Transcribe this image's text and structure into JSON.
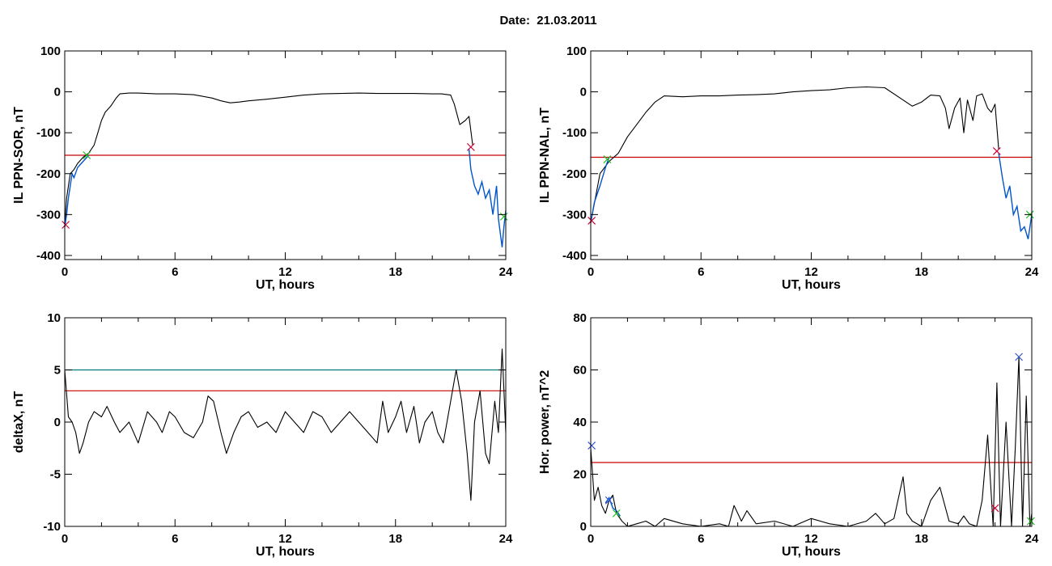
{
  "header": {
    "title": "Date:  21.03.2011"
  },
  "colors": {
    "axis": "#000000",
    "trace": "#000000",
    "segment": "#0055cc",
    "threshold_red": "#cc0000",
    "threshold_teal": "#007a7a",
    "marker_red": "#cc0033",
    "marker_green": "#22bb22",
    "marker_blue": "#3355cc"
  },
  "chart_data": [
    {
      "type": "line",
      "id": "p1",
      "xlabel": "UT, hours",
      "ylabel": "IL PPN-SOR, nT",
      "xlim": [
        0,
        24
      ],
      "ylim": [
        -410,
        100
      ],
      "xticks": [
        0,
        6,
        12,
        18,
        24
      ],
      "yticks": [
        100,
        0,
        -100,
        -200,
        -300,
        -400
      ],
      "series": [
        {
          "role": "trace",
          "x": [
            0,
            0.1,
            0.3,
            0.5,
            0.7,
            1.0,
            1.3,
            1.6,
            1.8,
            2.0,
            2.2,
            2.5,
            2.8,
            3.0,
            3.5,
            4,
            5,
            6,
            7,
            8,
            8.5,
            9,
            9.5,
            10,
            11,
            12,
            13,
            14,
            15,
            16,
            17,
            18,
            19,
            20,
            20.5,
            21,
            21.2,
            21.5,
            21.8,
            22.0,
            22.2
          ],
          "y": [
            -330,
            -260,
            -200,
            -190,
            -175,
            -160,
            -150,
            -130,
            -100,
            -70,
            -50,
            -35,
            -15,
            -5,
            -3,
            -3,
            -5,
            -5,
            -7,
            -15,
            -22,
            -27,
            -25,
            -22,
            -18,
            -13,
            -8,
            -5,
            -4,
            -3,
            -4,
            -4,
            -4,
            -5,
            -5,
            -8,
            -30,
            -80,
            -70,
            -60,
            -130
          ]
        },
        {
          "role": "segment",
          "x": [
            0,
            0.1,
            0.2,
            0.3,
            0.4,
            0.5,
            0.7,
            0.9,
            1.1,
            1.3,
            22.0,
            22.1,
            22.3,
            22.5,
            22.7,
            22.9,
            23.1,
            23.3,
            23.5,
            23.6,
            23.8,
            23.9,
            24
          ],
          "y": [
            -330,
            -300,
            -260,
            -230,
            -200,
            -210,
            -185,
            -175,
            -165,
            -155,
            -140,
            -190,
            -230,
            -250,
            -220,
            -260,
            -240,
            -300,
            -230,
            -310,
            -380,
            -330,
            -290
          ]
        }
      ],
      "thresholds": [
        {
          "value": -155,
          "color": "red"
        }
      ],
      "markers": [
        {
          "x": 0.05,
          "y": -325,
          "color": "red"
        },
        {
          "x": 1.2,
          "y": -155,
          "color": "green"
        },
        {
          "x": 22.1,
          "y": -135,
          "color": "red"
        },
        {
          "x": 23.9,
          "y": -305,
          "color": "green"
        }
      ]
    },
    {
      "type": "line",
      "id": "p2",
      "xlabel": "UT, hours",
      "ylabel": "IL PPN-NAL, nT",
      "xlim": [
        0,
        24
      ],
      "ylim": [
        -410,
        100
      ],
      "xticks": [
        0,
        6,
        12,
        18,
        24
      ],
      "yticks": [
        100,
        0,
        -100,
        -200,
        -300,
        -400
      ],
      "series": [
        {
          "role": "trace",
          "x": [
            0,
            0.5,
            1.0,
            1.5,
            2.0,
            2.5,
            3.0,
            3.5,
            4,
            5,
            6,
            7,
            8,
            9,
            10,
            11,
            12,
            13,
            14,
            15,
            16,
            17,
            17.5,
            18,
            18.5,
            19,
            19.3,
            19.5,
            19.8,
            20.1,
            20.3,
            20.5,
            20.8,
            21.0,
            21.3,
            21.6,
            21.8,
            22.0,
            22.2
          ],
          "y": [
            -320,
            -200,
            -170,
            -150,
            -110,
            -80,
            -50,
            -25,
            -10,
            -12,
            -10,
            -10,
            -8,
            -7,
            -5,
            0,
            3,
            5,
            10,
            12,
            10,
            -20,
            -35,
            -25,
            -8,
            -10,
            -40,
            -90,
            -40,
            -15,
            -100,
            -20,
            -70,
            -10,
            -5,
            -40,
            -50,
            -30,
            -140
          ]
        },
        {
          "role": "segment",
          "x": [
            0,
            0.2,
            0.5,
            0.8,
            1.0,
            22.2,
            22.4,
            22.6,
            22.8,
            23.0,
            23.2,
            23.4,
            23.6,
            23.8,
            24
          ],
          "y": [
            -320,
            -270,
            -230,
            -185,
            -160,
            -150,
            -210,
            -260,
            -230,
            -300,
            -280,
            -340,
            -330,
            -360,
            -300
          ]
        }
      ],
      "thresholds": [
        {
          "value": -160,
          "color": "red"
        }
      ],
      "markers": [
        {
          "x": 0.05,
          "y": -315,
          "color": "red"
        },
        {
          "x": 0.9,
          "y": -165,
          "color": "green"
        },
        {
          "x": 22.1,
          "y": -145,
          "color": "red"
        },
        {
          "x": 23.9,
          "y": -300,
          "color": "green"
        }
      ]
    },
    {
      "type": "line",
      "id": "p3",
      "xlabel": "UT, hours",
      "ylabel": "deltaX, nT",
      "xlim": [
        0,
        24
      ],
      "ylim": [
        -10,
        10
      ],
      "xticks": [
        0,
        6,
        12,
        18,
        24
      ],
      "yticks": [
        10,
        5,
        0,
        -5,
        -10
      ],
      "series": [
        {
          "role": "trace",
          "x": [
            0,
            0.2,
            0.4,
            0.6,
            0.8,
            1.0,
            1.3,
            1.6,
            2.0,
            2.3,
            2.7,
            3.0,
            3.5,
            4.0,
            4.5,
            5.0,
            5.3,
            5.7,
            6.0,
            6.5,
            7.0,
            7.5,
            7.8,
            8.1,
            8.5,
            8.8,
            9.2,
            9.6,
            10.0,
            10.5,
            11.0,
            11.5,
            12.0,
            12.5,
            13.0,
            13.5,
            14.0,
            14.5,
            15.0,
            15.5,
            16.0,
            16.5,
            17.0,
            17.3,
            17.6,
            18.0,
            18.3,
            18.6,
            19.0,
            19.3,
            19.6,
            20.0,
            20.3,
            20.6,
            21.0,
            21.3,
            21.6,
            21.9,
            22.1,
            22.3,
            22.6,
            22.9,
            23.1,
            23.4,
            23.6,
            23.8,
            24.0
          ],
          "y": [
            5,
            0.5,
            0,
            -1,
            -3,
            -2,
            0,
            1,
            0.5,
            1.5,
            0,
            -1,
            0,
            -2,
            1,
            0,
            -1,
            1,
            0.5,
            -1,
            -1.5,
            0,
            2.5,
            2,
            -1,
            -3,
            -1,
            0.5,
            1,
            -0.5,
            0,
            -1,
            1,
            0,
            -1,
            1,
            0.5,
            -1,
            0,
            1,
            0,
            -1,
            -2,
            2,
            -1,
            0.5,
            2,
            -1,
            1.5,
            -2,
            0,
            1,
            -1,
            -2,
            2,
            5,
            2,
            -3,
            -7.5,
            0,
            3,
            -3,
            -4,
            2,
            -1,
            7,
            -1
          ]
        }
      ],
      "thresholds": [
        {
          "value": 5,
          "color": "teal"
        },
        {
          "value": 3,
          "color": "red"
        }
      ],
      "markers": []
    },
    {
      "type": "line",
      "id": "p4",
      "xlabel": "UT, hours",
      "ylabel": "Hor. power, nT^2",
      "xlim": [
        0,
        24
      ],
      "ylim": [
        0,
        80
      ],
      "xticks": [
        0,
        6,
        12,
        18,
        24
      ],
      "yticks": [
        80,
        60,
        40,
        20,
        0
      ],
      "series": [
        {
          "role": "trace",
          "x": [
            0,
            0.2,
            0.4,
            0.6,
            0.8,
            1.0,
            1.2,
            1.4,
            1.7,
            2.0,
            2.5,
            3.0,
            3.5,
            4.0,
            5.0,
            6.0,
            7.0,
            7.5,
            7.8,
            8.2,
            8.5,
            9.0,
            10.0,
            11.0,
            12.0,
            13.0,
            14.0,
            15.0,
            15.5,
            16.0,
            16.5,
            17.0,
            17.2,
            17.5,
            18.0,
            18.5,
            19.0,
            19.5,
            20.0,
            20.3,
            20.6,
            21.0,
            21.3,
            21.6,
            21.9,
            22.1,
            22.3,
            22.6,
            22.9,
            23.1,
            23.3,
            23.5,
            23.7,
            23.9,
            24.0
          ],
          "y": [
            30,
            10,
            15,
            8,
            5,
            10,
            12,
            5,
            2,
            0,
            1,
            2,
            0,
            3,
            1,
            0,
            1,
            0,
            8,
            2,
            6,
            1,
            2,
            0,
            3,
            1,
            0,
            2,
            5,
            1,
            3,
            19,
            5,
            2,
            0,
            10,
            15,
            2,
            1,
            4,
            1,
            0,
            10,
            35,
            0,
            55,
            0,
            40,
            0,
            30,
            65,
            0,
            50,
            0,
            5
          ]
        },
        {
          "role": "segment",
          "x": [
            0.8,
            1.0,
            1.2,
            1.4,
            1.6
          ],
          "y": [
            9,
            11,
            7,
            6,
            4
          ]
        }
      ],
      "thresholds": [
        {
          "value": 24.5,
          "color": "red"
        }
      ],
      "markers": [
        {
          "x": 0.05,
          "y": 31,
          "color": "blue"
        },
        {
          "x": 1.0,
          "y": 10,
          "color": "blue"
        },
        {
          "x": 1.4,
          "y": 5,
          "color": "green"
        },
        {
          "x": 22.0,
          "y": 7,
          "color": "red"
        },
        {
          "x": 23.3,
          "y": 65,
          "color": "blue"
        },
        {
          "x": 23.95,
          "y": 2,
          "color": "green"
        }
      ]
    }
  ]
}
